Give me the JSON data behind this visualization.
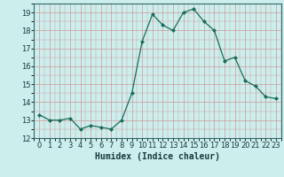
{
  "x": [
    0,
    1,
    2,
    3,
    4,
    5,
    6,
    7,
    8,
    9,
    10,
    11,
    12,
    13,
    14,
    15,
    16,
    17,
    18,
    19,
    20,
    21,
    22,
    23
  ],
  "y": [
    13.3,
    13.0,
    13.0,
    13.1,
    12.5,
    12.7,
    12.6,
    12.5,
    13.0,
    14.5,
    17.4,
    18.9,
    18.3,
    18.0,
    19.0,
    19.2,
    18.5,
    18.0,
    16.3,
    16.5,
    15.2,
    14.9,
    14.3,
    14.2
  ],
  "xlabel": "Humidex (Indice chaleur)",
  "xlim": [
    -0.5,
    23.5
  ],
  "ylim": [
    12,
    19.5
  ],
  "yticks": [
    12,
    13,
    14,
    15,
    16,
    17,
    18,
    19
  ],
  "xticks": [
    0,
    1,
    2,
    3,
    4,
    5,
    6,
    7,
    8,
    9,
    10,
    11,
    12,
    13,
    14,
    15,
    16,
    17,
    18,
    19,
    20,
    21,
    22,
    23
  ],
  "line_color": "#1a6b5a",
  "marker": "D",
  "marker_size": 2.0,
  "bg_color": "#cceeed",
  "grid_color": "#cc9999",
  "xlabel_fontsize": 7,
  "tick_fontsize": 6
}
